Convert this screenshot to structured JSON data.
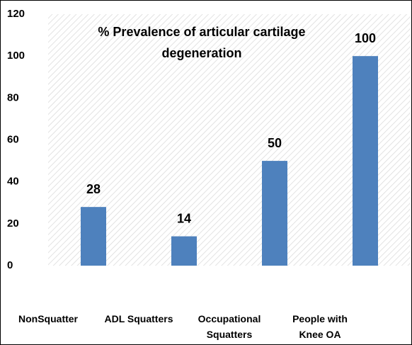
{
  "chart_data": {
    "type": "bar",
    "title": "% Prevalence of articular cartilage degeneration",
    "categories": [
      "NonSquatter",
      "ADL Squatters",
      "Occupational Squatters",
      "People with Knee OA"
    ],
    "values": [
      28,
      14,
      50,
      100
    ],
    "color": "#4e81bd",
    "ylim": [
      0,
      120
    ],
    "yticks": [
      0,
      20,
      40,
      60,
      80,
      100,
      120
    ]
  }
}
